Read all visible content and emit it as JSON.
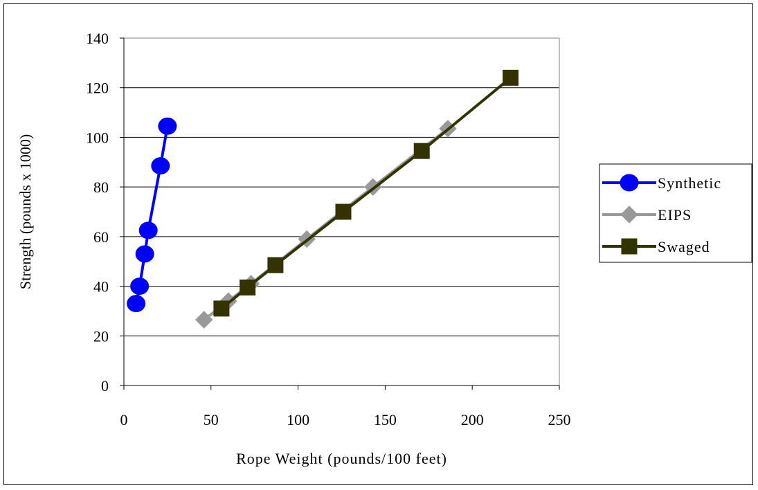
{
  "chart_data": {
    "type": "line",
    "title": "",
    "xlabel": "Rope Weight (pounds/100 feet)",
    "ylabel": "Strength (pounds x 1000)",
    "xlim": [
      0,
      250
    ],
    "ylim": [
      0,
      140
    ],
    "x_ticks": [
      0,
      50,
      100,
      150,
      200,
      250
    ],
    "y_ticks": [
      0,
      20,
      40,
      60,
      80,
      100,
      120,
      140
    ],
    "x_tick_labels": [
      "0",
      "50",
      "100",
      "150",
      "200",
      "250"
    ],
    "y_tick_labels": [
      "0",
      "20",
      "40",
      "60",
      "80",
      "100",
      "120",
      "140"
    ],
    "grid": "horizontal",
    "plot_background": "#ffffff",
    "legend_position": "right",
    "series": [
      {
        "name": "Synthetic",
        "marker": "circle",
        "color": "#0000ff",
        "x": [
          7,
          9,
          12,
          14,
          21,
          25
        ],
        "y": [
          33,
          40,
          53,
          62.5,
          88.5,
          104.5
        ]
      },
      {
        "name": "EIPS",
        "marker": "diamond",
        "color": "#999999",
        "x": [
          46,
          60,
          73,
          105,
          143,
          186
        ],
        "y": [
          26.5,
          34,
          41,
          59,
          80,
          103.5
        ]
      },
      {
        "name": "Swaged",
        "marker": "square",
        "color": "#333300",
        "x": [
          56,
          71,
          87,
          126,
          171,
          222
        ],
        "y": [
          31,
          39.5,
          48.5,
          70,
          94.5,
          124
        ]
      }
    ]
  }
}
